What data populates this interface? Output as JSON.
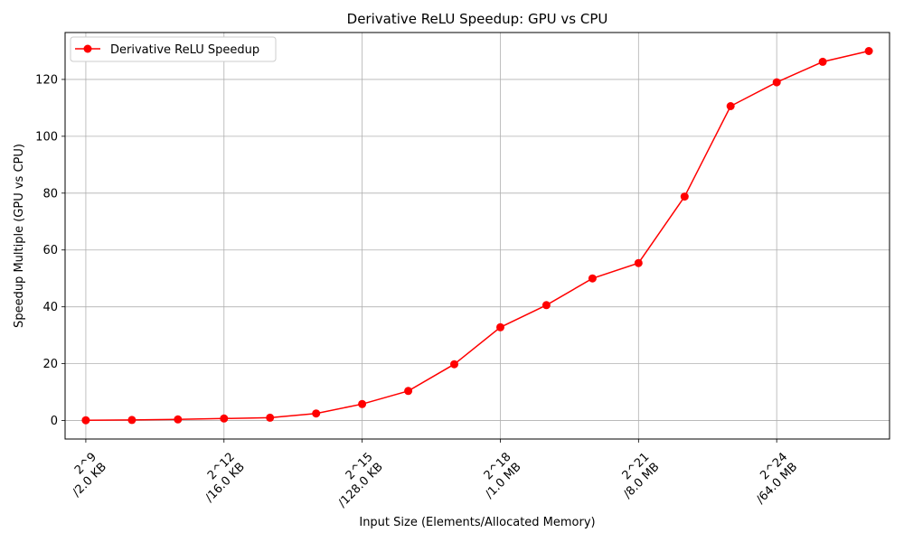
{
  "chart_data": {
    "type": "line",
    "title": "Derivative ReLU Speedup: GPU vs CPU",
    "xlabel": "Input Size (Elements/Allocated Memory)",
    "ylabel": "Speedup Multiple (GPU vs CPU)",
    "x_exponents": [
      9,
      10,
      11,
      12,
      13,
      14,
      15,
      16,
      17,
      18,
      19,
      20,
      21,
      22,
      23,
      24,
      25,
      26
    ],
    "x_ticks": [
      {
        "exp": 9,
        "line1": "2^9",
        "line2": "/2.0 KB"
      },
      {
        "exp": 12,
        "line1": "2^12",
        "line2": "/16.0 KB"
      },
      {
        "exp": 15,
        "line1": "2^15",
        "line2": "/128.0 KB"
      },
      {
        "exp": 18,
        "line1": "2^18",
        "line2": "/1.0 MB"
      },
      {
        "exp": 21,
        "line1": "2^21",
        "line2": "/8.0 MB"
      },
      {
        "exp": 24,
        "line1": "2^24",
        "line2": "/64.0 MB"
      }
    ],
    "y_ticks": [
      0,
      20,
      40,
      60,
      80,
      100,
      120
    ],
    "xlim": [
      8.55,
      26.45
    ],
    "ylim": [
      -6.5,
      136.5
    ],
    "grid": true,
    "legend_position": "top-left",
    "series": [
      {
        "name": "Derivative ReLU Speedup",
        "color": "#ff0000",
        "values": [
          0.1,
          0.2,
          0.4,
          0.7,
          1.0,
          2.5,
          5.8,
          10.4,
          19.8,
          32.8,
          40.6,
          50.0,
          55.4,
          78.8,
          110.6,
          119.0,
          126.2,
          130.0
        ]
      }
    ]
  }
}
